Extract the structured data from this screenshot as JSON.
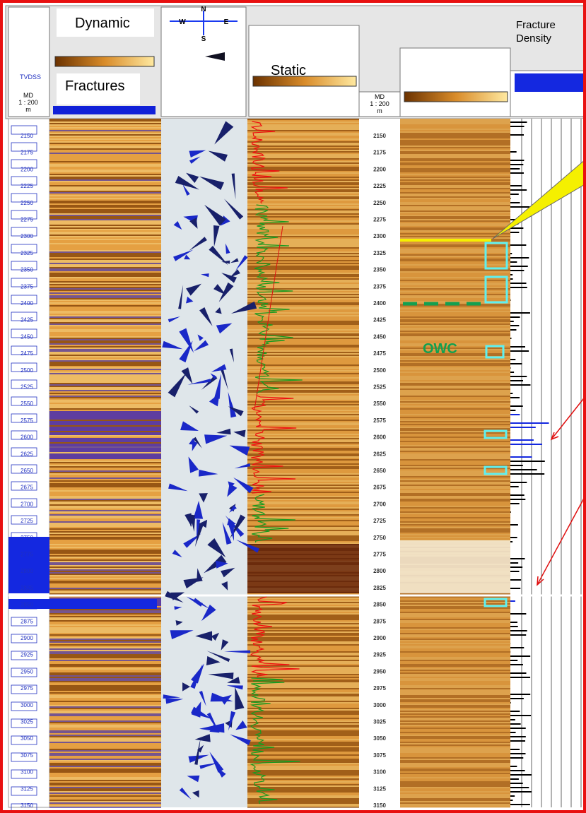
{
  "header": {
    "dynamic": "Dynamic",
    "fractures": "Fractures",
    "static": "Static",
    "fracture_density": "Fracture Density",
    "compass": {
      "n": "N",
      "w": "W",
      "e": "E",
      "s": "S"
    },
    "md_label": "MD",
    "scale": "1 : 200",
    "unit": "m",
    "tvd": "TVDSS"
  },
  "annotations": {
    "owc": "OWC"
  },
  "depth_track": {
    "labels": [
      2150,
      2175,
      2200,
      2225,
      2250,
      2275,
      2300,
      2325,
      2350,
      2375,
      2400,
      2425,
      2450,
      2475,
      2500,
      2525,
      2550,
      2575,
      2600,
      2625,
      2650,
      2675,
      2700,
      2725,
      2750,
      2775,
      2800,
      2825,
      2850,
      2875,
      2900,
      2925,
      2950,
      2975,
      3000,
      3025,
      3050,
      3075,
      3100,
      3125,
      3150
    ]
  }
}
